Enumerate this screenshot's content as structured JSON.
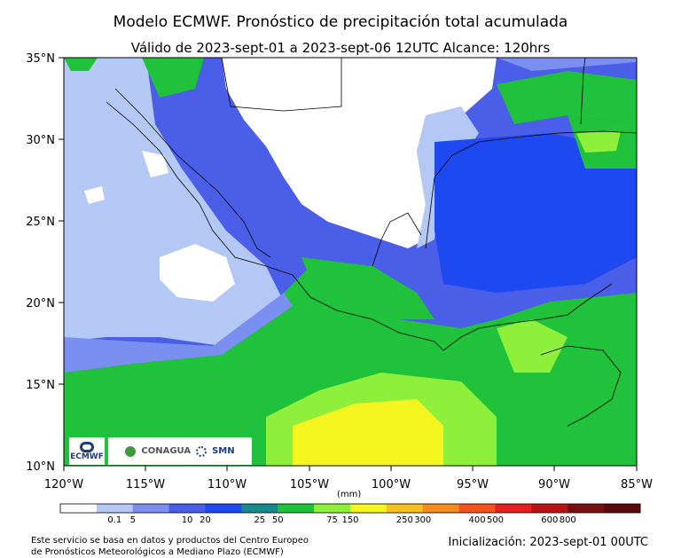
{
  "title": "Modelo ECMWF. Pronóstico de precipitación total acumulada",
  "subtitle": "Válido de 2023-sept-01 a 2023-sept-06 12UTC   Alcance: 120hrs",
  "axes": {
    "lon_labels": [
      "120°W",
      "115°W",
      "110°W",
      "105°W",
      "100°W",
      "95°W",
      "90°W",
      "85°W"
    ],
    "lat_labels": [
      "35°N",
      "30°N",
      "25°N",
      "20°N",
      "15°N",
      "10°N"
    ]
  },
  "colorbar": {
    "unit": "(mm)",
    "labels": [
      "0.1",
      "5",
      "10",
      "20",
      "25",
      "50",
      "75",
      "150",
      "250",
      "300",
      "400",
      "500",
      "600",
      "800"
    ],
    "colors": [
      "#ffffff",
      "#b4c8f5",
      "#7b8ff0",
      "#4a5ee8",
      "#1f49f0",
      "#178a8c",
      "#1fc23a",
      "#8ef03a",
      "#f5f51f",
      "#f5c21f",
      "#f58a1f",
      "#f5541f",
      "#e81f1f",
      "#b81414",
      "#781010",
      "#5a0a0a"
    ]
  },
  "logos": {
    "ecmwf": "ECMWF",
    "conagua": "CONAGUA",
    "smn": "SMN"
  },
  "footer": {
    "left_line1": "Este servicio se basa en datos y productos del Centro Europeo",
    "left_line2": "de Pronósticos Meteorológicos a Mediano Plazo (ECMWF)",
    "right": "Inicialización: 2023-sept-01 00UTC"
  }
}
